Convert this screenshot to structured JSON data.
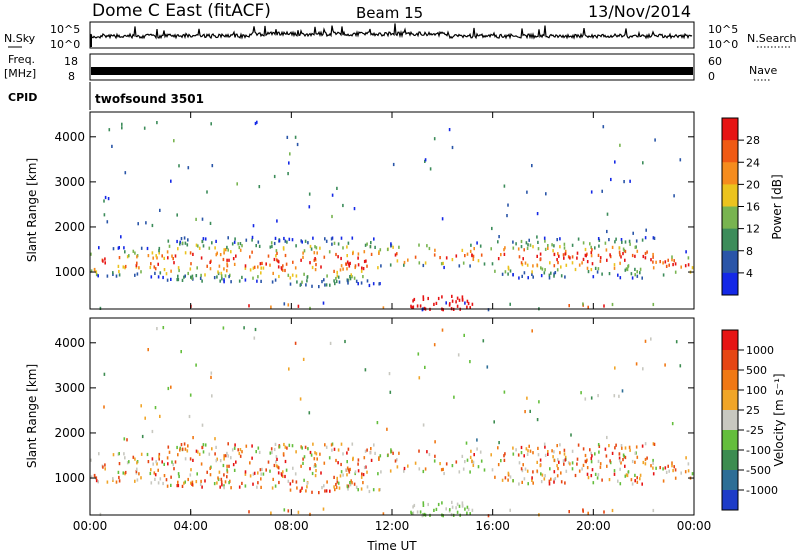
{
  "header": {
    "station": "Dome C East (fitACF)",
    "beam": "Beam 15",
    "date": "13/Nov/2014"
  },
  "status_panels": {
    "nsky_label": "N.Sky",
    "nsky_ticks": [
      "10^5",
      "10^0"
    ],
    "nsearch_label": "N.Search",
    "nsearch_ticks": [
      "10^5",
      "10^0"
    ],
    "freq_label": "Freq.",
    "freq_unit": "[MHz]",
    "freq_ticks": [
      "18",
      "8"
    ],
    "nave_label": "Nave",
    "nave_ticks": [
      "60",
      "0"
    ],
    "cpid_label": "CPID",
    "cpid_value": "twofsound 3501"
  },
  "colors": {
    "power_scale": [
      "#1428e6",
      "#2a55a8",
      "#3c8c5a",
      "#78b450",
      "#ebc31e",
      "#f58c1e",
      "#f05a14",
      "#e61414"
    ],
    "velocity_scale": [
      "#1e3cc8",
      "#2d6e96",
      "#3c8c50",
      "#64be3c",
      "#c8c8c0",
      "#f0a528",
      "#f07814",
      "#e64614",
      "#e61414"
    ]
  },
  "chart_data": [
    {
      "type": "heatmap",
      "name": "power",
      "xlabel": "",
      "ylabel": "Slant Range [km]",
      "x_ticks": [
        "00:00",
        "04:00",
        "08:00",
        "12:00",
        "16:00",
        "20:00",
        "00:00"
      ],
      "y_ticks": [
        "1000",
        "2000",
        "3000",
        "4000"
      ],
      "xlim": [
        0,
        24
      ],
      "ylim": [
        180,
        4550
      ],
      "colorbar": {
        "label": "Power [dB]",
        "ticks": [
          "28",
          "24",
          "20",
          "16",
          "12",
          "8",
          "4"
        ]
      }
    },
    {
      "type": "heatmap",
      "name": "velocity",
      "xlabel": "Time UT",
      "ylabel": "Slant Range [km]",
      "x_ticks": [
        "00:00",
        "04:00",
        "08:00",
        "12:00",
        "16:00",
        "20:00",
        "00:00"
      ],
      "y_ticks": [
        "1000",
        "2000",
        "3000",
        "4000"
      ],
      "xlim": [
        0,
        24
      ],
      "ylim": [
        180,
        4550
      ],
      "colorbar": {
        "label": "Velocity [m s⁻¹]",
        "ticks": [
          "1000",
          "500",
          "100",
          "25",
          "-25",
          "-100",
          "-500",
          "-1000"
        ]
      }
    }
  ]
}
